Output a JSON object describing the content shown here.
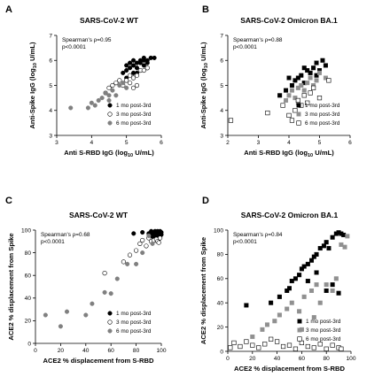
{
  "chart_data": [
    {
      "panel": "A",
      "type": "scatter",
      "title": "SARS-CoV-2 WT",
      "xlabel": "Anti S-RBD IgG (log",
      "xlabel_sub": "10",
      "xlabel_end": " U/mL)",
      "ylabel": "Anti-Spike IgG (log",
      "ylabel_sub": "10",
      "ylabel_end": " U/mL)",
      "xlim": [
        3,
        6
      ],
      "ylim": [
        3,
        7
      ],
      "xticks": [
        "3",
        "4",
        "5",
        "6"
      ],
      "yticks": [
        "3",
        "4",
        "5",
        "6",
        "7"
      ],
      "stats": [
        "Spearman's ρ=0.95",
        "p<0.0001"
      ],
      "legend_position": "bottom-right",
      "series": [
        {
          "name": "1 mo post-3rd",
          "marker": "circle-filled",
          "color": "#000000",
          "points": [
            [
              4.9,
              5.5
            ],
            [
              5.0,
              5.3
            ],
            [
              5.0,
              5.6
            ],
            [
              5.1,
              5.7
            ],
            [
              5.2,
              5.8
            ],
            [
              5.2,
              5.5
            ],
            [
              5.3,
              5.9
            ],
            [
              5.3,
              5.7
            ],
            [
              5.4,
              5.6
            ],
            [
              5.4,
              6.0
            ],
            [
              5.5,
              5.8
            ],
            [
              5.5,
              6.0
            ],
            [
              5.6,
              6.0
            ],
            [
              5.6,
              5.9
            ],
            [
              5.7,
              6.1
            ],
            [
              5.8,
              6.1
            ],
            [
              5.1,
              5.9
            ],
            [
              5.2,
              6.0
            ],
            [
              5.4,
              5.9
            ],
            [
              5.5,
              6.1
            ],
            [
              5.0,
              5.8
            ],
            [
              5.3,
              5.5
            ]
          ]
        },
        {
          "name": "3 mo post-3rd",
          "marker": "circle-open",
          "color": "#000000",
          "points": [
            [
              4.5,
              4.9
            ],
            [
              4.6,
              5.0
            ],
            [
              4.7,
              5.1
            ],
            [
              4.8,
              5.2
            ],
            [
              4.9,
              5.0
            ],
            [
              5.0,
              5.2
            ],
            [
              5.1,
              5.4
            ],
            [
              5.2,
              5.3
            ],
            [
              5.3,
              5.4
            ],
            [
              5.4,
              5.6
            ],
            [
              5.5,
              5.6
            ],
            [
              5.6,
              5.7
            ],
            [
              4.4,
              4.7
            ],
            [
              5.2,
              4.9
            ],
            [
              5.3,
              5.0
            ],
            [
              5.1,
              5.1
            ]
          ]
        },
        {
          "name": "6 mo post-3rd",
          "marker": "circle-filled",
          "color": "#808080",
          "points": [
            [
              3.4,
              4.1
            ],
            [
              3.9,
              4.1
            ],
            [
              4.0,
              4.3
            ],
            [
              4.1,
              4.2
            ],
            [
              4.2,
              4.4
            ],
            [
              4.3,
              4.5
            ],
            [
              4.4,
              4.7
            ],
            [
              4.5,
              4.6
            ],
            [
              4.6,
              4.8
            ],
            [
              4.7,
              4.6
            ],
            [
              4.8,
              5.0
            ],
            [
              4.9,
              5.1
            ],
            [
              5.0,
              4.9
            ],
            [
              4.5,
              4.4
            ]
          ]
        }
      ]
    },
    {
      "panel": "B",
      "type": "scatter",
      "title": "SARS-CoV-2 Omicron BA.1",
      "xlabel": "Anti S-RBD IgG (log",
      "xlabel_sub": "10",
      "xlabel_end": " U/mL)",
      "ylabel": "Anti-Spike IgG (log",
      "ylabel_sub": "10",
      "ylabel_end": " U/mL)",
      "xlim": [
        2,
        6
      ],
      "ylim": [
        3,
        7
      ],
      "xticks": [
        "2",
        "3",
        "4",
        "5",
        "6"
      ],
      "yticks": [
        "3",
        "4",
        "5",
        "6",
        "7"
      ],
      "stats": [
        "Spearman's ρ=0.88",
        "p<0.0001"
      ],
      "legend_position": "bottom-right",
      "series": [
        {
          "name": "1 mo post-3rd",
          "marker": "square-filled",
          "color": "#000000",
          "points": [
            [
              3.7,
              4.6
            ],
            [
              3.9,
              4.8
            ],
            [
              4.1,
              5.0
            ],
            [
              4.2,
              5.2
            ],
            [
              4.3,
              5.3
            ],
            [
              4.4,
              5.4
            ],
            [
              4.5,
              5.1
            ],
            [
              4.6,
              5.6
            ],
            [
              4.7,
              5.5
            ],
            [
              4.8,
              5.7
            ],
            [
              4.9,
              5.9
            ],
            [
              5.0,
              5.6
            ],
            [
              5.1,
              6.0
            ],
            [
              5.2,
              5.8
            ],
            [
              4.0,
              5.3
            ],
            [
              4.5,
              5.7
            ],
            [
              4.9,
              5.4
            ]
          ]
        },
        {
          "name": "3 mo post-3rd",
          "marker": "square-filled",
          "color": "#909090",
          "points": [
            [
              3.9,
              4.4
            ],
            [
              4.0,
              4.6
            ],
            [
              4.1,
              4.8
            ],
            [
              4.2,
              4.5
            ],
            [
              4.3,
              4.9
            ],
            [
              4.4,
              5.0
            ],
            [
              4.5,
              4.8
            ],
            [
              4.6,
              5.1
            ],
            [
              4.7,
              5.3
            ],
            [
              4.8,
              5.0
            ],
            [
              4.9,
              5.2
            ],
            [
              5.0,
              5.5
            ],
            [
              5.2,
              5.3
            ],
            [
              4.3,
              4.3
            ]
          ]
        },
        {
          "name": "6 mo post-3rd",
          "marker": "square-open",
          "color": "#000000",
          "points": [
            [
              2.1,
              3.6
            ],
            [
              3.3,
              3.9
            ],
            [
              3.8,
              4.2
            ],
            [
              4.0,
              3.8
            ],
            [
              4.1,
              3.6
            ],
            [
              4.2,
              4.0
            ],
            [
              4.3,
              4.4
            ],
            [
              4.4,
              4.2
            ],
            [
              4.5,
              4.6
            ],
            [
              4.6,
              4.3
            ],
            [
              4.7,
              4.7
            ],
            [
              4.8,
              4.9
            ],
            [
              5.0,
              4.5
            ],
            [
              5.3,
              5.2
            ]
          ]
        }
      ]
    },
    {
      "panel": "C",
      "type": "scatter",
      "title": "SARS-CoV-2 WT",
      "xlabel": "ACE2 % displacement from S-RBD",
      "ylabel": "ACE2 % displacement from Spike",
      "xlim": [
        0,
        100
      ],
      "ylim": [
        0,
        100
      ],
      "xticks": [
        "0",
        "20",
        "40",
        "60",
        "80",
        "100"
      ],
      "yticks": [
        "0",
        "20",
        "40",
        "60",
        "80",
        "100"
      ],
      "stats": [
        "Spearman's ρ=0.68",
        "p<0.0001"
      ],
      "legend_position": "bottom-right",
      "series": [
        {
          "name": "1 mo post-3rd",
          "marker": "circle-filled",
          "color": "#000000",
          "points": [
            [
              78,
              97
            ],
            [
              85,
              98
            ],
            [
              90,
              97
            ],
            [
              92,
              99
            ],
            [
              93,
              96
            ],
            [
              94,
              98
            ],
            [
              95,
              97
            ],
            [
              95,
              99
            ],
            [
              96,
              95
            ],
            [
              96,
              98
            ],
            [
              97,
              97
            ],
            [
              97,
              99
            ],
            [
              98,
              96
            ],
            [
              98,
              98
            ],
            [
              99,
              97
            ],
            [
              99,
              99
            ],
            [
              100,
              98
            ],
            [
              100,
              96
            ],
            [
              97,
              94
            ],
            [
              94,
              93
            ],
            [
              92,
              95
            ],
            [
              99,
              94
            ],
            [
              98,
              92
            ]
          ]
        },
        {
          "name": "3 mo post-3rd",
          "marker": "circle-open",
          "color": "#000000",
          "points": [
            [
              55,
              62
            ],
            [
              70,
              72
            ],
            [
              75,
              78
            ],
            [
              80,
              82
            ],
            [
              83,
              88
            ],
            [
              85,
              91
            ],
            [
              88,
              86
            ],
            [
              90,
              93
            ],
            [
              92,
              90
            ],
            [
              94,
              91
            ],
            [
              96,
              92
            ],
            [
              97,
              90
            ],
            [
              98,
              89
            ],
            [
              99,
              93
            ]
          ]
        },
        {
          "name": "6 mo post-3rd",
          "marker": "circle-filled",
          "color": "#808080",
          "points": [
            [
              8,
              25
            ],
            [
              20,
              15
            ],
            [
              25,
              28
            ],
            [
              40,
              25
            ],
            [
              45,
              35
            ],
            [
              55,
              45
            ],
            [
              60,
              44
            ],
            [
              65,
              57
            ],
            [
              73,
              70
            ],
            [
              80,
              70
            ],
            [
              85,
              80
            ],
            [
              90,
              95
            ],
            [
              93,
              88
            ]
          ]
        }
      ]
    },
    {
      "panel": "D",
      "type": "scatter",
      "title": "SARS-CoV-2 Omicron BA.1",
      "xlabel": "ACE2 % displacement from S-RBD",
      "ylabel": "ACE2 % displacement from Spike",
      "xlim": [
        0,
        100
      ],
      "ylim": [
        0,
        100
      ],
      "xticks": [
        "0",
        "20",
        "40",
        "60",
        "80",
        "100"
      ],
      "yticks": [
        "0",
        "20",
        "40",
        "60",
        "80",
        "100"
      ],
      "stats": [
        "Spearman's ρ=0.84",
        "p<0.0001"
      ],
      "legend_position": "bottom-right",
      "series": [
        {
          "name": "1 mo post-3rd",
          "marker": "square-filled",
          "color": "#000000",
          "points": [
            [
              15,
              38
            ],
            [
              35,
              40
            ],
            [
              42,
              45
            ],
            [
              48,
              50
            ],
            [
              50,
              52
            ],
            [
              52,
              58
            ],
            [
              55,
              60
            ],
            [
              58,
              63
            ],
            [
              60,
              68
            ],
            [
              62,
              70
            ],
            [
              65,
              72
            ],
            [
              68,
              75
            ],
            [
              70,
              78
            ],
            [
              72,
              80
            ],
            [
              75,
              85
            ],
            [
              78,
              87
            ],
            [
              80,
              90
            ],
            [
              82,
              85
            ],
            [
              85,
              94
            ],
            [
              88,
              97
            ],
            [
              90,
              98
            ],
            [
              92,
              97
            ],
            [
              94,
              96
            ],
            [
              72,
              65
            ],
            [
              65,
              58
            ],
            [
              80,
              50
            ],
            [
              85,
              55
            ],
            [
              90,
              48
            ]
          ]
        },
        {
          "name": "3 mo post-3rd",
          "marker": "square-filled",
          "color": "#909090",
          "points": [
            [
              20,
              12
            ],
            [
              28,
              18
            ],
            [
              32,
              22
            ],
            [
              38,
              25
            ],
            [
              42,
              30
            ],
            [
              48,
              35
            ],
            [
              52,
              40
            ],
            [
              58,
              33
            ],
            [
              62,
              45
            ],
            [
              68,
              50
            ],
            [
              72,
              55
            ],
            [
              75,
              40
            ],
            [
              80,
              55
            ],
            [
              85,
              50
            ],
            [
              88,
              60
            ],
            [
              92,
              88
            ],
            [
              95,
              86
            ],
            [
              97,
              95
            ],
            [
              60,
              18
            ],
            [
              70,
              28
            ]
          ]
        },
        {
          "name": "6 mo post-3rd",
          "marker": "square-open",
          "color": "#000000",
          "points": [
            [
              2,
              3
            ],
            [
              5,
              7
            ],
            [
              10,
              4
            ],
            [
              15,
              8
            ],
            [
              20,
              5
            ],
            [
              25,
              3
            ],
            [
              30,
              6
            ],
            [
              35,
              10
            ],
            [
              40,
              8
            ],
            [
              45,
              4
            ],
            [
              50,
              5
            ],
            [
              55,
              2
            ],
            [
              60,
              7
            ],
            [
              65,
              4
            ],
            [
              70,
              3
            ],
            [
              75,
              6
            ],
            [
              80,
              2
            ],
            [
              85,
              5
            ],
            [
              90,
              3
            ],
            [
              92,
              2
            ]
          ]
        }
      ]
    }
  ]
}
